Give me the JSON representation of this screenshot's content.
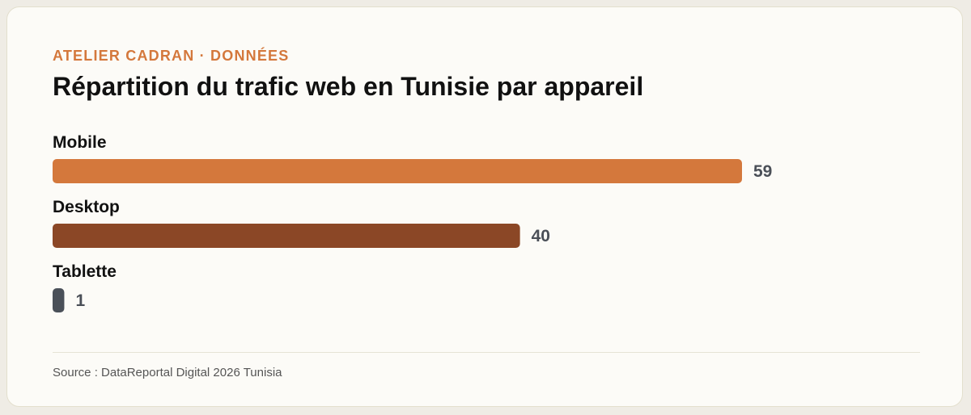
{
  "header": {
    "brand": "ATELIER CADRAN · DONNÉES",
    "title": "Répartition du trafic web en Tunisie par appareil"
  },
  "footer": {
    "source": "Source : DataReportal Digital 2026 Tunisia"
  },
  "colors": {
    "accent": "#d4783c",
    "mobile": "#d4783c",
    "desktop": "#8b4726",
    "tablette": "#4a5059"
  },
  "chart_data": {
    "type": "bar",
    "orientation": "horizontal",
    "categories": [
      "Mobile",
      "Desktop",
      "Tablette"
    ],
    "values": [
      59,
      40,
      1
    ],
    "colors": [
      "#d4783c",
      "#8b4726",
      "#4a5059"
    ],
    "xlim": [
      0,
      59
    ],
    "grid": false,
    "legend": "none",
    "title": "Répartition du trafic web en Tunisie par appareil"
  }
}
